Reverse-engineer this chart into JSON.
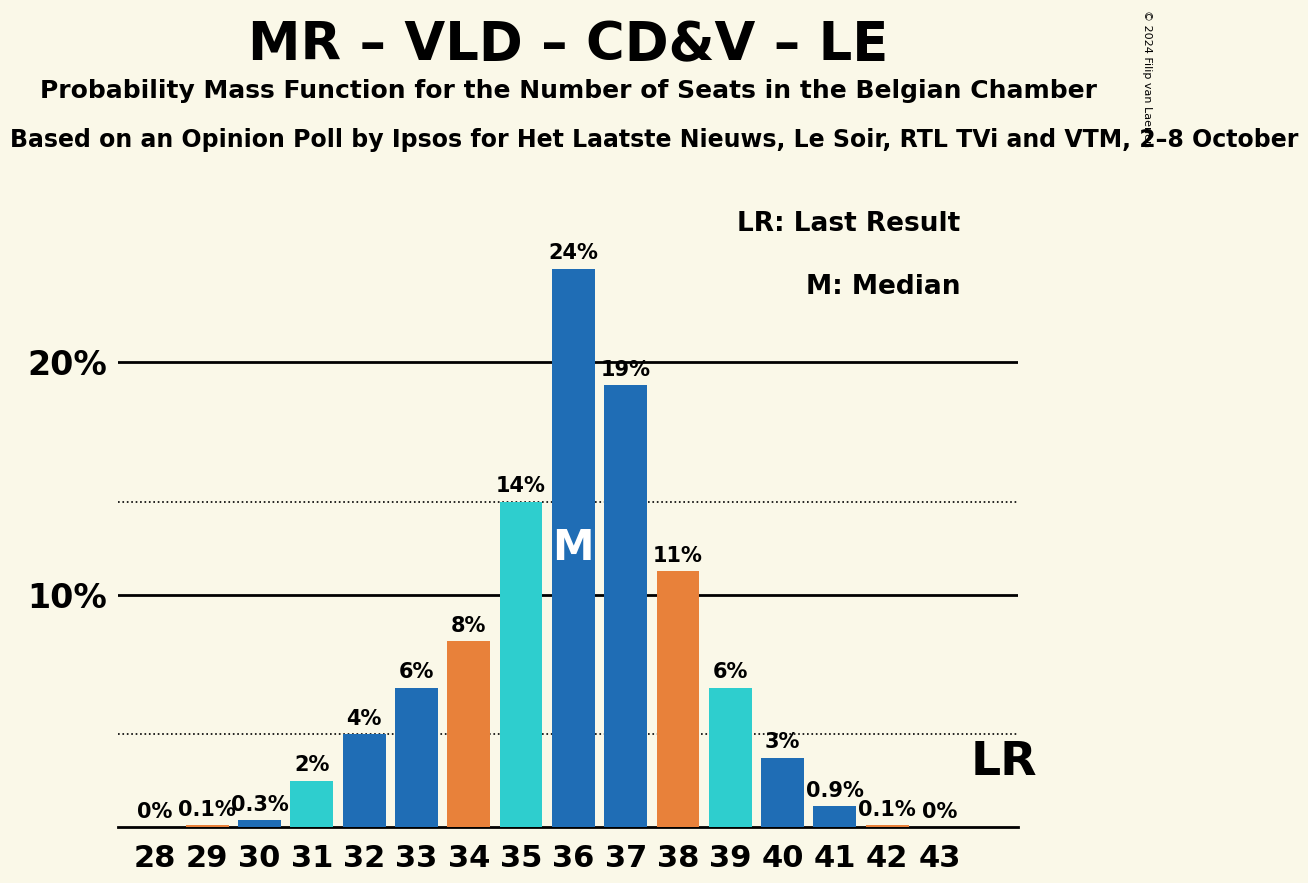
{
  "title": "MR – VLD – CD&V – LE",
  "subtitle": "Probability Mass Function for the Number of Seats in the Belgian Chamber",
  "subtitle2": "Based on an Opinion Poll by Ipsos for Het Laatste Nieuws, Le Soir, RTL TVi and VTM, 2–8 October",
  "copyright": "© 2024 Filip van Laenen",
  "background_color": "#faf8e8",
  "seats": [
    28,
    29,
    30,
    31,
    32,
    33,
    34,
    35,
    36,
    37,
    38,
    39,
    40,
    41,
    42,
    43
  ],
  "probabilities": [
    0.0,
    0.1,
    0.3,
    2.0,
    4.0,
    6.0,
    8.0,
    14.0,
    24.0,
    19.0,
    11.0,
    6.0,
    3.0,
    0.9,
    0.1,
    0.0
  ],
  "bar_colors": [
    "#1f6db5",
    "#e8813a",
    "#1f6db5",
    "#2ecece",
    "#1f6db5",
    "#1f6db5",
    "#e8813a",
    "#2ecece",
    "#1f6db5",
    "#1f6db5",
    "#e8813a",
    "#2ecece",
    "#1f6db5",
    "#1f6db5",
    "#e8813a",
    "#1f6db5"
  ],
  "median_seat": 36,
  "lr_seat": 40,
  "lr_label": "LR",
  "median_label": "M",
  "legend_lr": "LR: Last Result",
  "legend_m": "M: Median",
  "ylim": [
    0,
    27
  ],
  "dotted_lines": [
    4.0,
    14.0
  ],
  "solid_lines": [
    10.0,
    20.0
  ],
  "title_fontsize": 38,
  "subtitle_fontsize": 18,
  "subtitle2_fontsize": 17,
  "axis_fontsize": 22,
  "legend_fontsize": 19,
  "bar_label_fontsize": 15,
  "median_label_fontsize": 30,
  "lr_label_fontsize": 34,
  "yaxis_label_fontsize": 24
}
